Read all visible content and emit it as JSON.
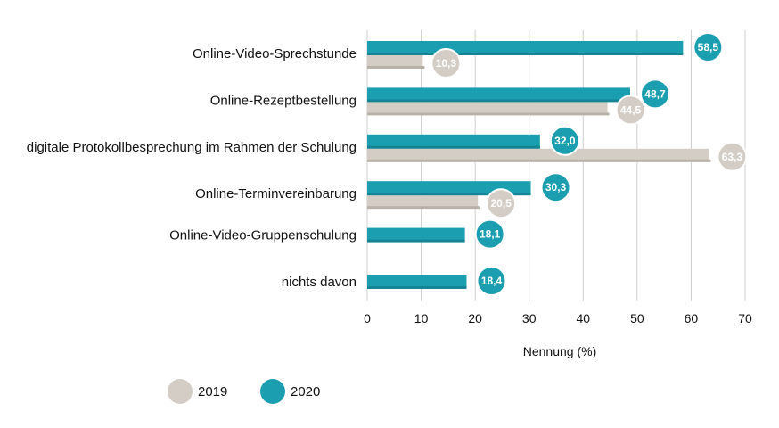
{
  "chart_data": {
    "type": "bar",
    "orientation": "horizontal",
    "categories": [
      "Online-Video-Sprechstunde",
      "Online-Rezeptbestellung",
      "digitale Protokollbesprechung im Rahmen der Schulung",
      "Online-Terminvereinbarung",
      "Online-Video-Gruppenschulung",
      "nichts davon"
    ],
    "series": [
      {
        "name": "2020",
        "color": "#1a9eb0",
        "values": [
          58.5,
          48.7,
          32.0,
          30.3,
          18.1,
          18.4
        ],
        "labels": [
          "58,5",
          "48,7",
          "32,0",
          "30,3",
          "18,1",
          "18,4"
        ]
      },
      {
        "name": "2019",
        "color": "#d3cdc5",
        "values": [
          10.3,
          44.5,
          63.3,
          20.5,
          null,
          null
        ],
        "labels": [
          "10,3",
          "44,5",
          "63,3",
          "20,5",
          "",
          ""
        ]
      }
    ],
    "xlabel": "Nennung (%)",
    "xlim": [
      0,
      70
    ],
    "xticks": [
      "0",
      "10",
      "20",
      "30",
      "40",
      "50",
      "60",
      "70"
    ],
    "grid": true,
    "legend": {
      "position": "bottom-left",
      "items": [
        "2019",
        "2020"
      ]
    }
  }
}
